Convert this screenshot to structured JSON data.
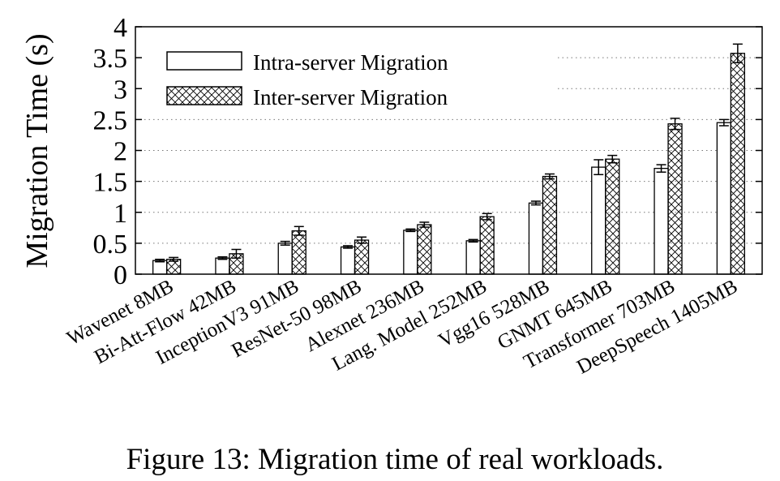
{
  "chart_data": {
    "type": "bar",
    "ylabel": "Migration Time (s)",
    "xlabel": "",
    "ylim": [
      0,
      4
    ],
    "yticks": [
      "0",
      "0.5",
      "1",
      "1.5",
      "2",
      "2.5",
      "3",
      "3.5",
      "4"
    ],
    "grid": "horizontal-dotted",
    "legend_position": "top-left",
    "categories": [
      "Wavenet 8MB",
      "Bi-Att-Flow 42MB",
      "InceptionV3 91MB",
      "ResNet-50 98MB",
      "Alexnet 236MB",
      "Lang. Model 252MB",
      "Vgg16 528MB",
      "GNMT 645MB",
      "Transformer 703MB",
      "DeepSpeech 1405MB"
    ],
    "series": [
      {
        "name": "Intra-server Migration",
        "pattern": "plain",
        "values": [
          0.22,
          0.26,
          0.5,
          0.44,
          0.71,
          0.54,
          1.15,
          1.73,
          1.71,
          2.45
        ],
        "errors": [
          0.02,
          0.02,
          0.03,
          0.02,
          0.02,
          0.02,
          0.03,
          0.12,
          0.06,
          0.05
        ]
      },
      {
        "name": "Inter-server Migration",
        "pattern": "crosshatch",
        "values": [
          0.24,
          0.33,
          0.7,
          0.55,
          0.8,
          0.93,
          1.58,
          1.86,
          2.43,
          3.57
        ],
        "errors": [
          0.03,
          0.07,
          0.07,
          0.05,
          0.04,
          0.05,
          0.04,
          0.06,
          0.09,
          0.15
        ]
      }
    ]
  },
  "caption": "Figure 13: Migration time of real workloads."
}
